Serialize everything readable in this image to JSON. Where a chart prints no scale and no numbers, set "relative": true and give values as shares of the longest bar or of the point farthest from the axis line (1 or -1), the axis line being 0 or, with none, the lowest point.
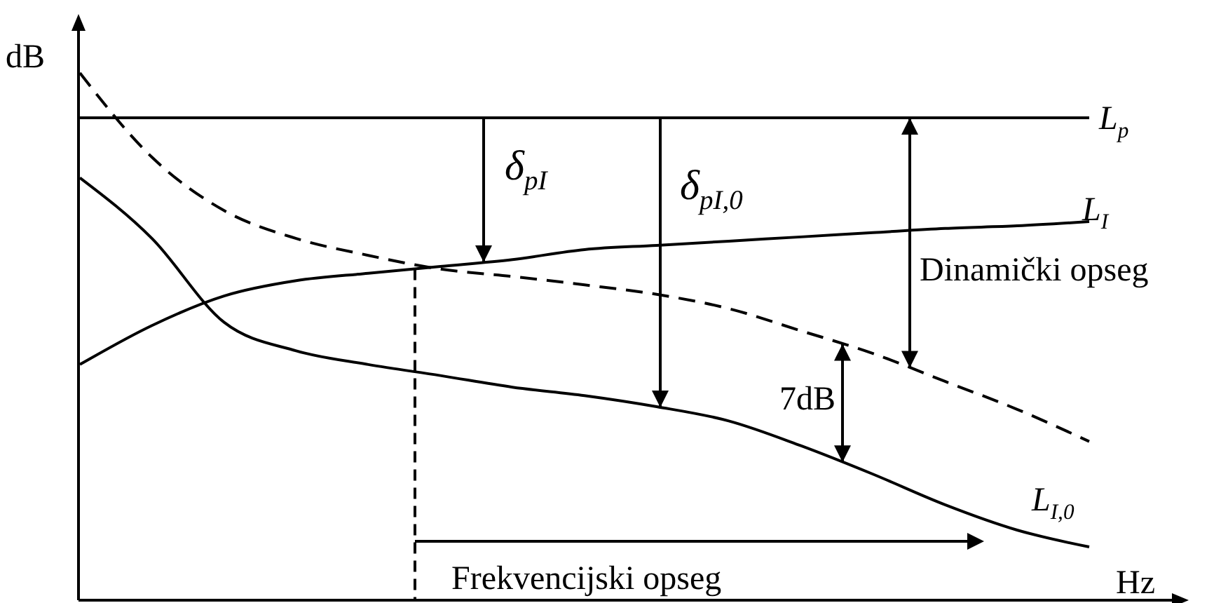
{
  "chart_data": {
    "type": "line",
    "relative": true,
    "xlabel": "Hz",
    "ylabel": "dB",
    "categories": [
      null,
      null,
      null,
      null,
      null,
      null,
      null,
      null,
      null,
      null,
      null,
      null,
      null,
      null,
      null
    ],
    "series": [
      {
        "name": "L$_{p}$",
        "color": "#000000",
        "values": [
          0.915,
          0.915,
          0.915,
          0.915,
          0.915,
          0.915,
          0.915,
          0.915,
          0.915,
          0.915,
          0.915,
          0.915,
          0.915,
          0.915,
          0.915
        ]
      },
      {
        "name": "L$_{I}$",
        "color": "#000000",
        "values": [
          0.447,
          0.521,
          0.577,
          0.606,
          0.62,
          0.633,
          0.646,
          0.665,
          0.673,
          0.681,
          0.689,
          0.697,
          0.705,
          0.71,
          0.718
        ]
      },
      {
        "name": "L$_{I,0}$",
        "color": "#000000",
        "values": [
          0.801,
          0.686,
          0.527,
          0.473,
          0.447,
          0.426,
          0.404,
          0.388,
          0.367,
          0.34,
          0.293,
          0.239,
          0.181,
          0.133,
          0.101
        ]
      },
      {
        "color": "#000000",
        "line_style": "dashed",
        "values": [
          1,
          0.84,
          0.739,
          0.686,
          0.654,
          0.628,
          0.614,
          0.598,
          0.58,
          0.553,
          0.511,
          0.468,
          0.415,
          0.362,
          0.301
        ]
      }
    ],
    "annotations": [
      "δ$_{pI}$",
      "δ$_{pI,0}$",
      "Dinamički opseg",
      "7dB",
      "Frekvencijski opseg"
    ]
  }
}
